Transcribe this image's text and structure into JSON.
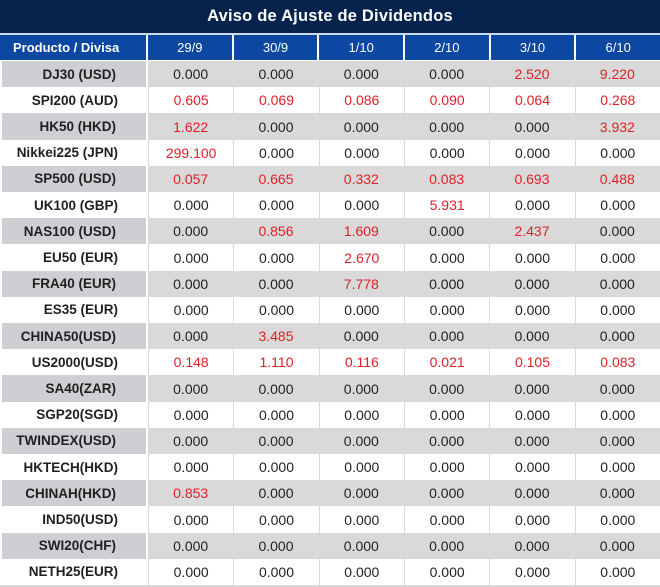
{
  "title": "Aviso de Ajuste de Dividendos",
  "table": {
    "product_header": "Producto / Divisa",
    "date_headers": [
      "29/9",
      "30/9",
      "1/10",
      "2/10",
      "3/10",
      "6/10"
    ],
    "rows": [
      {
        "product": "DJ30 (USD)",
        "values": [
          "0.000",
          "0.000",
          "0.000",
          "0.000",
          "2.520",
          "9.220"
        ],
        "red": [
          false,
          false,
          false,
          false,
          true,
          true
        ]
      },
      {
        "product": "SPI200 (AUD)",
        "values": [
          "0.605",
          "0.069",
          "0.086",
          "0.090",
          "0.064",
          "0.268"
        ],
        "red": [
          true,
          true,
          true,
          true,
          true,
          true
        ]
      },
      {
        "product": "HK50 (HKD)",
        "values": [
          "1.622",
          "0.000",
          "0.000",
          "0.000",
          "0.000",
          "3.932"
        ],
        "red": [
          true,
          false,
          false,
          false,
          false,
          true
        ]
      },
      {
        "product": "Nikkei225 (JPN)",
        "values": [
          "299.100",
          "0.000",
          "0.000",
          "0.000",
          "0.000",
          "0.000"
        ],
        "red": [
          true,
          false,
          false,
          false,
          false,
          false
        ]
      },
      {
        "product": "SP500 (USD)",
        "values": [
          "0.057",
          "0.665",
          "0.332",
          "0.083",
          "0.693",
          "0.488"
        ],
        "red": [
          true,
          true,
          true,
          true,
          true,
          true
        ]
      },
      {
        "product": "UK100 (GBP)",
        "values": [
          "0.000",
          "0.000",
          "0.000",
          "5.931",
          "0.000",
          "0.000"
        ],
        "red": [
          false,
          false,
          false,
          true,
          false,
          false
        ]
      },
      {
        "product": "NAS100 (USD)",
        "values": [
          "0.000",
          "0.856",
          "1.609",
          "0.000",
          "2.437",
          "0.000"
        ],
        "red": [
          false,
          true,
          true,
          false,
          true,
          false
        ]
      },
      {
        "product": "EU50 (EUR)",
        "values": [
          "0.000",
          "0.000",
          "2.670",
          "0.000",
          "0.000",
          "0.000"
        ],
        "red": [
          false,
          false,
          true,
          false,
          false,
          false
        ]
      },
      {
        "product": "FRA40 (EUR)",
        "values": [
          "0.000",
          "0.000",
          "7.778",
          "0.000",
          "0.000",
          "0.000"
        ],
        "red": [
          false,
          false,
          true,
          false,
          false,
          false
        ]
      },
      {
        "product": "ES35 (EUR)",
        "values": [
          "0.000",
          "0.000",
          "0.000",
          "0.000",
          "0.000",
          "0.000"
        ],
        "red": [
          false,
          false,
          false,
          false,
          false,
          false
        ]
      },
      {
        "product": "CHINA50(USD)",
        "values": [
          "0.000",
          "3.485",
          "0.000",
          "0.000",
          "0.000",
          "0.000"
        ],
        "red": [
          false,
          true,
          false,
          false,
          false,
          false
        ]
      },
      {
        "product": "US2000(USD)",
        "values": [
          "0.148",
          "1.110",
          "0.116",
          "0.021",
          "0.105",
          "0.083"
        ],
        "red": [
          true,
          true,
          true,
          true,
          true,
          true
        ]
      },
      {
        "product": "SA40(ZAR)",
        "values": [
          "0.000",
          "0.000",
          "0.000",
          "0.000",
          "0.000",
          "0.000"
        ],
        "red": [
          false,
          false,
          false,
          false,
          false,
          false
        ]
      },
      {
        "product": "SGP20(SGD)",
        "values": [
          "0.000",
          "0.000",
          "0.000",
          "0.000",
          "0.000",
          "0.000"
        ],
        "red": [
          false,
          false,
          false,
          false,
          false,
          false
        ]
      },
      {
        "product": "TWINDEX(USD)",
        "values": [
          "0.000",
          "0.000",
          "0.000",
          "0.000",
          "0.000",
          "0.000"
        ],
        "red": [
          false,
          false,
          false,
          false,
          false,
          false
        ]
      },
      {
        "product": "HKTECH(HKD)",
        "values": [
          "0.000",
          "0.000",
          "0.000",
          "0.000",
          "0.000",
          "0.000"
        ],
        "red": [
          false,
          false,
          false,
          false,
          false,
          false
        ]
      },
      {
        "product": "CHINAH(HKD)",
        "values": [
          "0.853",
          "0.000",
          "0.000",
          "0.000",
          "0.000",
          "0.000"
        ],
        "red": [
          true,
          false,
          false,
          false,
          false,
          false
        ]
      },
      {
        "product": "IND50(USD)",
        "values": [
          "0.000",
          "0.000",
          "0.000",
          "0.000",
          "0.000",
          "0.000"
        ],
        "red": [
          false,
          false,
          false,
          false,
          false,
          false
        ]
      },
      {
        "product": "SWI20(CHF)",
        "values": [
          "0.000",
          "0.000",
          "0.000",
          "0.000",
          "0.000",
          "0.000"
        ],
        "red": [
          false,
          false,
          false,
          false,
          false,
          false
        ]
      },
      {
        "product": "NETH25(EUR)",
        "values": [
          "0.000",
          "0.000",
          "0.000",
          "0.000",
          "0.000",
          "0.000"
        ],
        "red": [
          false,
          false,
          false,
          false,
          false,
          false
        ]
      }
    ]
  },
  "colors": {
    "title_bg": "#06234e",
    "header_bg": "#0c47a1",
    "title_gap": "#ccd9ec",
    "row_gray": "#d9d9d9",
    "product_gray": "#cdcfd3",
    "row_white": "#ffffff",
    "separator_gray": "#d9d9d9",
    "value_red": "#e02026",
    "text_dark": "#1f1f1f",
    "header_text": "#ffffff"
  }
}
